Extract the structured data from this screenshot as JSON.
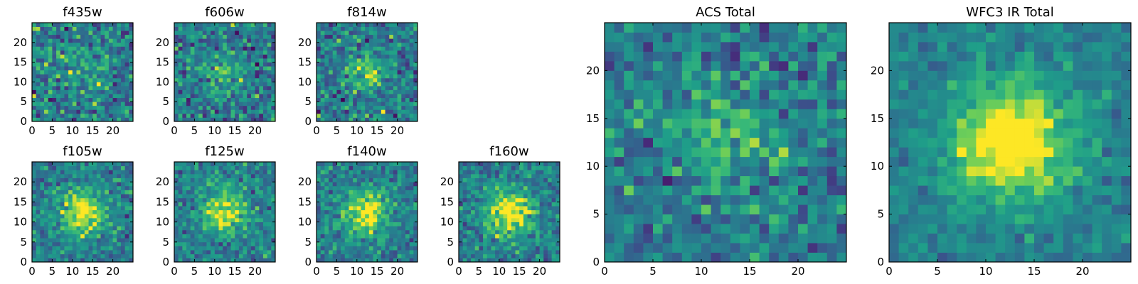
{
  "chart_data": [
    {
      "type": "heatmap",
      "title": "f435w",
      "xlim": [
        0,
        25
      ],
      "ylim": [
        0,
        25
      ],
      "xticks": [
        0,
        5,
        10,
        15,
        20
      ],
      "yticks": [
        0,
        5,
        10,
        15,
        20
      ],
      "colormap": "viridis",
      "center_brightness": 0.15,
      "source_radius": 4,
      "noise": 0.3
    },
    {
      "type": "heatmap",
      "title": "f606w",
      "xlim": [
        0,
        25
      ],
      "ylim": [
        0,
        25
      ],
      "xticks": [
        0,
        5,
        10,
        15,
        20
      ],
      "yticks": [
        0,
        5,
        10,
        15,
        20
      ],
      "colormap": "viridis",
      "center_brightness": 0.3,
      "source_radius": 3,
      "noise": 0.28
    },
    {
      "type": "heatmap",
      "title": "f814w",
      "xlim": [
        0,
        25
      ],
      "ylim": [
        0,
        25
      ],
      "xticks": [
        0,
        5,
        10,
        15,
        20
      ],
      "yticks": [
        0,
        5,
        10,
        15,
        20
      ],
      "colormap": "viridis",
      "center_brightness": 0.35,
      "source_radius": 3,
      "noise": 0.28
    },
    {
      "type": "heatmap",
      "title": "f105w",
      "xlim": [
        0,
        25
      ],
      "ylim": [
        0,
        25
      ],
      "xticks": [
        0,
        5,
        10,
        15,
        20
      ],
      "yticks": [
        0,
        5,
        10,
        15,
        20
      ],
      "colormap": "viridis",
      "center_brightness": 0.55,
      "source_radius": 4,
      "noise": 0.22
    },
    {
      "type": "heatmap",
      "title": "f125w",
      "xlim": [
        0,
        25
      ],
      "ylim": [
        0,
        25
      ],
      "xticks": [
        0,
        5,
        10,
        15,
        20
      ],
      "yticks": [
        0,
        5,
        10,
        15,
        20
      ],
      "colormap": "viridis",
      "center_brightness": 0.55,
      "source_radius": 4,
      "noise": 0.22
    },
    {
      "type": "heatmap",
      "title": "f140w",
      "xlim": [
        0,
        25
      ],
      "ylim": [
        0,
        25
      ],
      "xticks": [
        0,
        5,
        10,
        15,
        20
      ],
      "yticks": [
        0,
        5,
        10,
        15,
        20
      ],
      "colormap": "viridis",
      "center_brightness": 0.55,
      "source_radius": 4,
      "noise": 0.22
    },
    {
      "type": "heatmap",
      "title": "f160w",
      "xlim": [
        0,
        25
      ],
      "ylim": [
        0,
        25
      ],
      "xticks": [
        0,
        5,
        10,
        15,
        20
      ],
      "yticks": [
        0,
        5,
        10,
        15,
        20
      ],
      "colormap": "viridis",
      "center_brightness": 0.6,
      "source_radius": 4,
      "noise": 0.22
    },
    {
      "type": "heatmap",
      "title": "ACS Total",
      "xlim": [
        0,
        25
      ],
      "ylim": [
        0,
        25
      ],
      "xticks": [
        0,
        5,
        10,
        15,
        20
      ],
      "yticks": [
        0,
        5,
        10,
        15,
        20
      ],
      "colormap": "viridis",
      "center_brightness": 0.3,
      "source_radius": 3.5,
      "noise": 0.26
    },
    {
      "type": "heatmap",
      "title": "WFC3 IR Total",
      "xlim": [
        0,
        25
      ],
      "ylim": [
        0,
        25
      ],
      "xticks": [
        0,
        5,
        10,
        15,
        20
      ],
      "yticks": [
        0,
        5,
        10,
        15,
        20
      ],
      "colormap": "viridis",
      "center_brightness": 0.65,
      "source_radius": 4.5,
      "noise": 0.14
    }
  ]
}
